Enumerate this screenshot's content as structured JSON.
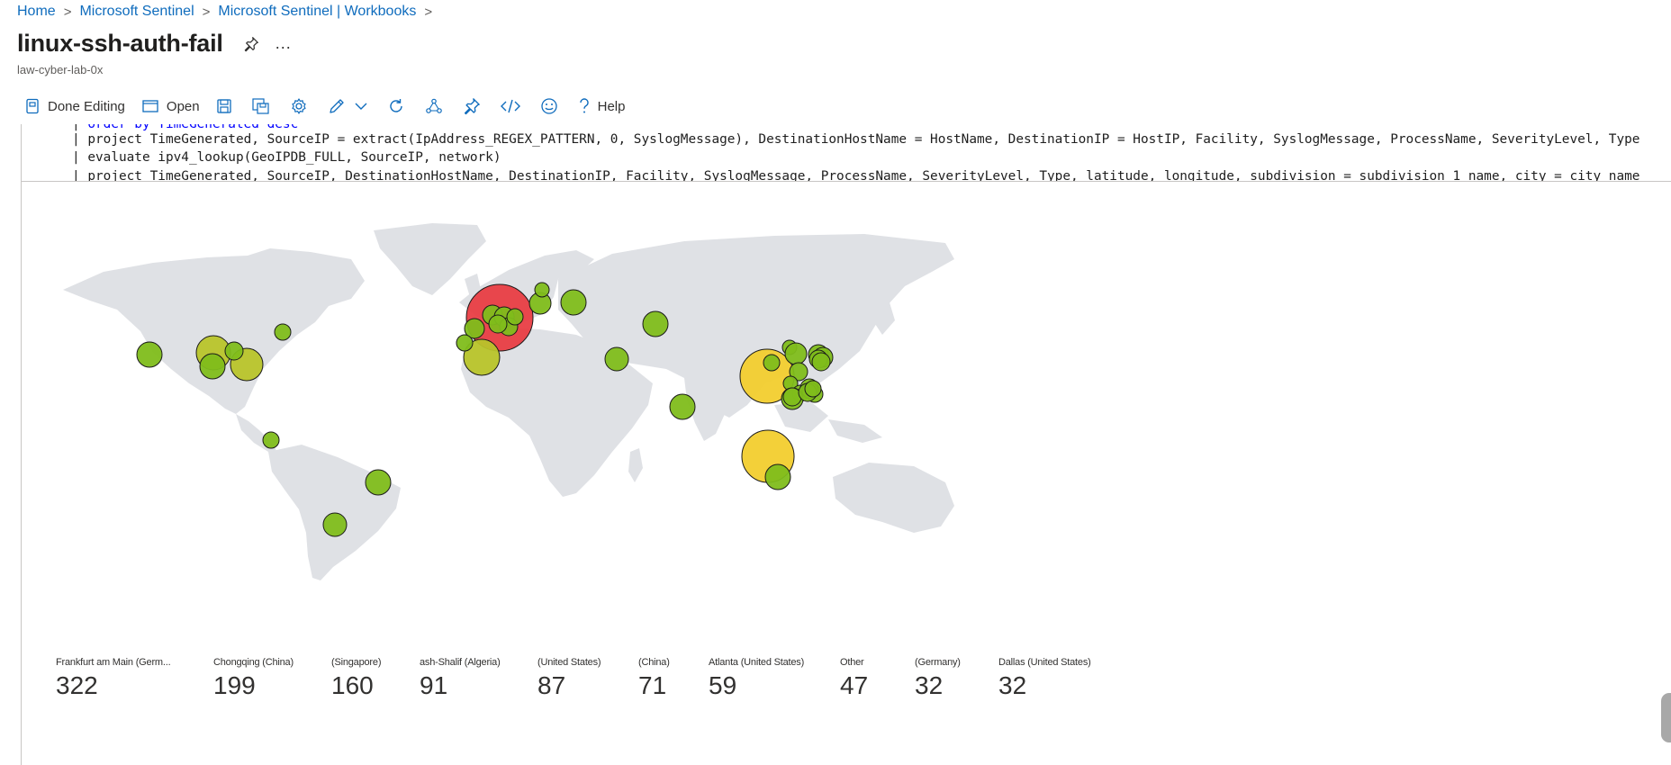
{
  "breadcrumb": {
    "items": [
      "Home",
      "Microsoft Sentinel",
      "Microsoft Sentinel | Workbooks"
    ],
    "separator": ">"
  },
  "header": {
    "title": "linux-ssh-auth-fail",
    "subtitle": "law-cyber-lab-0x",
    "pin_icon": "pin-icon",
    "more_label": "..."
  },
  "toolbar": {
    "done_editing_label": "Done Editing",
    "open_label": "Open",
    "help_label": "Help",
    "icons": [
      "save-icon",
      "save-as-icon",
      "settings-icon",
      "edit-icon",
      "chevron-down-icon",
      "refresh-icon",
      "share-icon",
      "pin-icon",
      "code-icon",
      "feedback-icon",
      "help-icon"
    ]
  },
  "code": {
    "line0": "order by TimeGenerated desc",
    "line1": "project TimeGenerated, SourceIP = extract(IpAddress_REGEX_PATTERN, 0, SyslogMessage), DestinationHostName = HostName, DestinationIP = HostIP, Facility, SyslogMessage, ProcessName, SeverityLevel, Type",
    "line2": "evaluate ipv4_lookup(GeoIPDB_FULL, SourceIP, network)",
    "line3": "project TimeGenerated, SourceIP, DestinationHostName, DestinationIP, Facility, SyslogMessage, ProcessName, SeverityLevel, Type, latitude, longitude, subdivision = subdivision_1_name, city = city_name"
  },
  "map": {
    "colors": {
      "land": "#dfe1e5",
      "red": "#e8383f",
      "yellow": "#f2cd2e",
      "olive": "#b8c42a",
      "green": "#7fbd1b"
    }
  },
  "tiles": [
    {
      "label": "Frankfurt am Main (Germ...",
      "value": "322"
    },
    {
      "label": "Chongqing (China)",
      "value": "199"
    },
    {
      "label": "(Singapore)",
      "value": "160"
    },
    {
      "label": "ash-Shalif (Algeria)",
      "value": "91"
    },
    {
      "label": "(United States)",
      "value": "87"
    },
    {
      "label": "(China)",
      "value": "71"
    },
    {
      "label": "Atlanta (United States)",
      "value": "59"
    },
    {
      "label": "Other",
      "value": "47"
    },
    {
      "label": "(Germany)",
      "value": "32"
    },
    {
      "label": "Dallas (United States)",
      "value": "32"
    }
  ]
}
